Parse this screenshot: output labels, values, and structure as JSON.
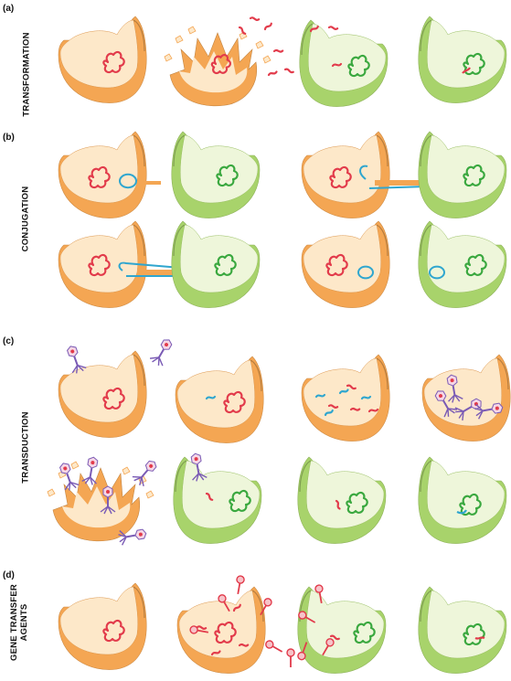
{
  "panels": [
    {
      "letter": "(a)",
      "label_lines": [
        "TRANSFORMATION"
      ]
    },
    {
      "letter": "(b)",
      "label_lines": [
        "CONJUGATION"
      ]
    },
    {
      "letter": "(c)",
      "label_lines": [
        "TRANSDUCTION"
      ]
    },
    {
      "letter": "(d)",
      "label_lines": [
        "GENE TRANSFER",
        "AGENTS"
      ]
    }
  ],
  "colors": {
    "donor_outer": "#f4a653",
    "donor_inner": "#fde8c9",
    "recipient_outer": "#a8d36b",
    "recipient_inner": "#eef6da",
    "donor_dna": "#e23b4b",
    "recipient_dna": "#3aa83f",
    "plasmid": "#2fa6cf",
    "phage": "#7a5bb5"
  }
}
